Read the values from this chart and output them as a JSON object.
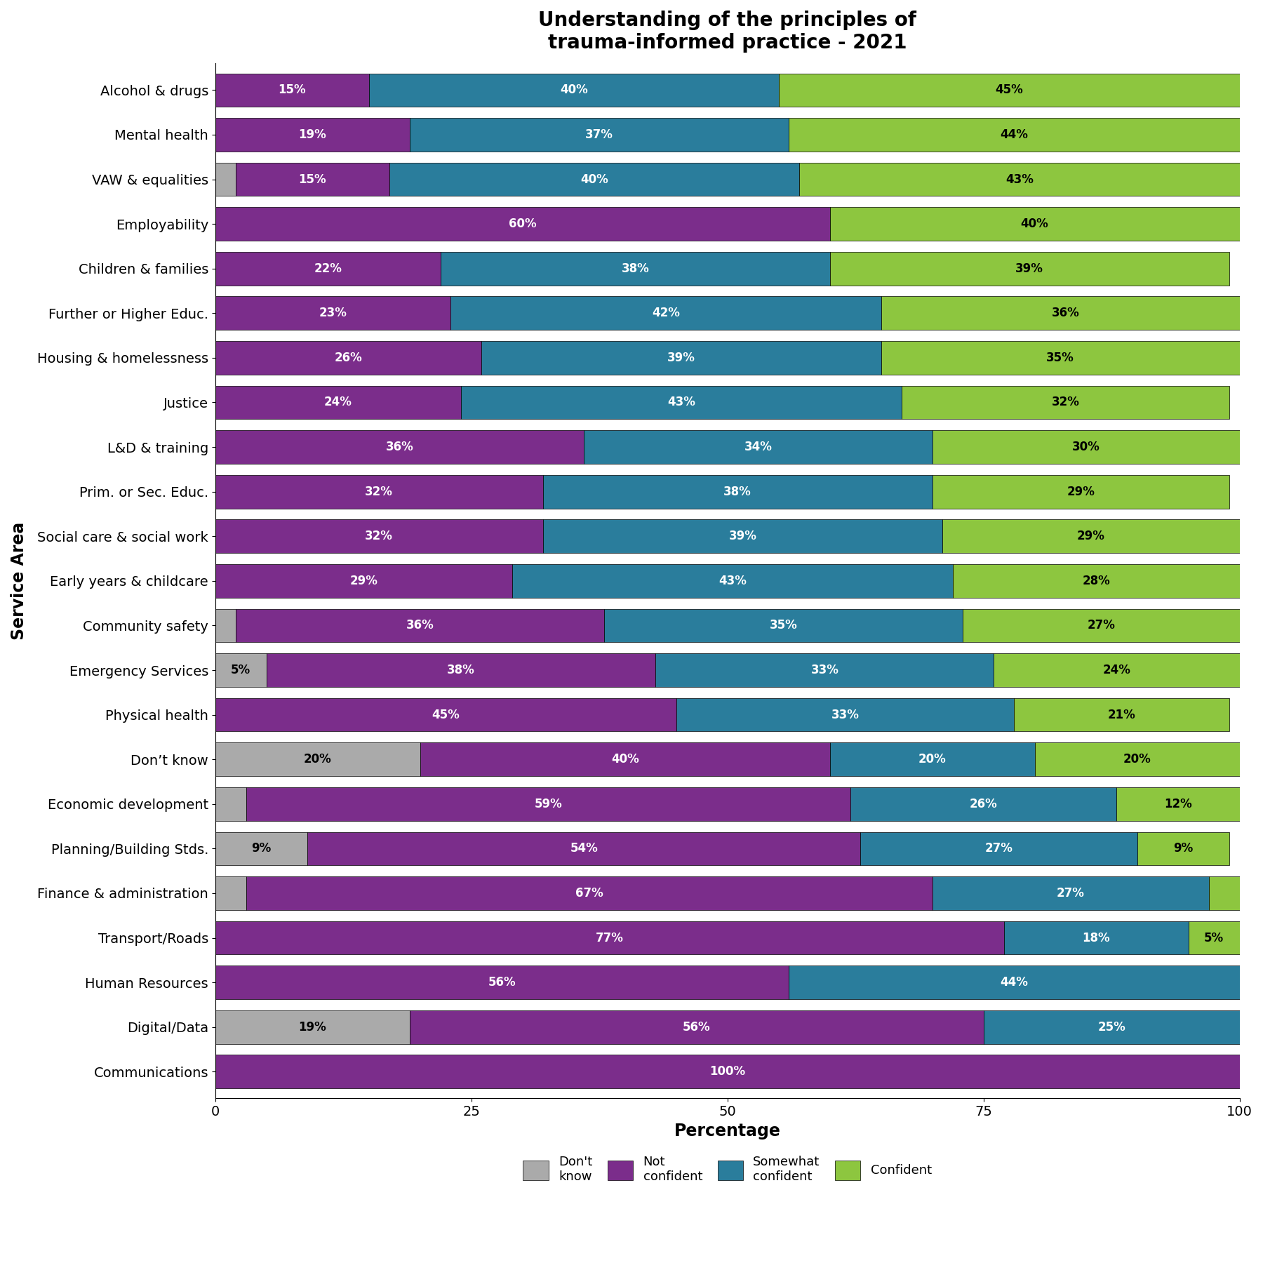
{
  "title": "Understanding of the principles of\ntrauma-informed practice - 2021",
  "xlabel": "Percentage",
  "ylabel": "Service Area",
  "categories": [
    "Alcohol & drugs",
    "Mental health",
    "VAW & equalities",
    "Employability",
    "Children & families",
    "Further or Higher Educ.",
    "Housing & homelessness",
    "Justice",
    "L&D & training",
    "Prim. or Sec. Educ.",
    "Social care & social work",
    "Early years & childcare",
    "Community safety",
    "Emergency Services",
    "Physical health",
    "Don’t know",
    "Economic development",
    "Planning/Building Stds.",
    "Finance & administration",
    "Transport/Roads",
    "Human Resources",
    "Digital/Data",
    "Communications"
  ],
  "dont_know": [
    0,
    0,
    2,
    0,
    0,
    0,
    0,
    0,
    0,
    0,
    0,
    0,
    2,
    5,
    0,
    20,
    3,
    9,
    3,
    0,
    0,
    19,
    0
  ],
  "not_confident": [
    15,
    19,
    15,
    60,
    22,
    23,
    26,
    24,
    36,
    32,
    32,
    29,
    36,
    38,
    45,
    40,
    59,
    54,
    67,
    77,
    56,
    56,
    100
  ],
  "somewhat_confident": [
    40,
    37,
    40,
    0,
    38,
    42,
    39,
    43,
    34,
    38,
    39,
    43,
    35,
    33,
    33,
    20,
    26,
    27,
    27,
    18,
    44,
    25,
    0
  ],
  "confident": [
    45,
    44,
    43,
    40,
    39,
    36,
    35,
    32,
    30,
    29,
    29,
    28,
    27,
    24,
    21,
    20,
    12,
    9,
    3,
    5,
    0,
    0,
    0
  ],
  "color_dont_know": "#aaaaaa",
  "color_not_confident": "#7b2d8b",
  "color_somewhat_confident": "#2a7d9c",
  "color_confident": "#8dc63f",
  "bar_height": 0.75,
  "xlim": [
    0,
    100
  ],
  "title_fontsize": 20,
  "label_fontsize": 15,
  "tick_fontsize": 14,
  "bar_text_fontsize": 12,
  "legend_fontsize": 13,
  "figsize": [
    18,
    18
  ],
  "dpi": 100
}
